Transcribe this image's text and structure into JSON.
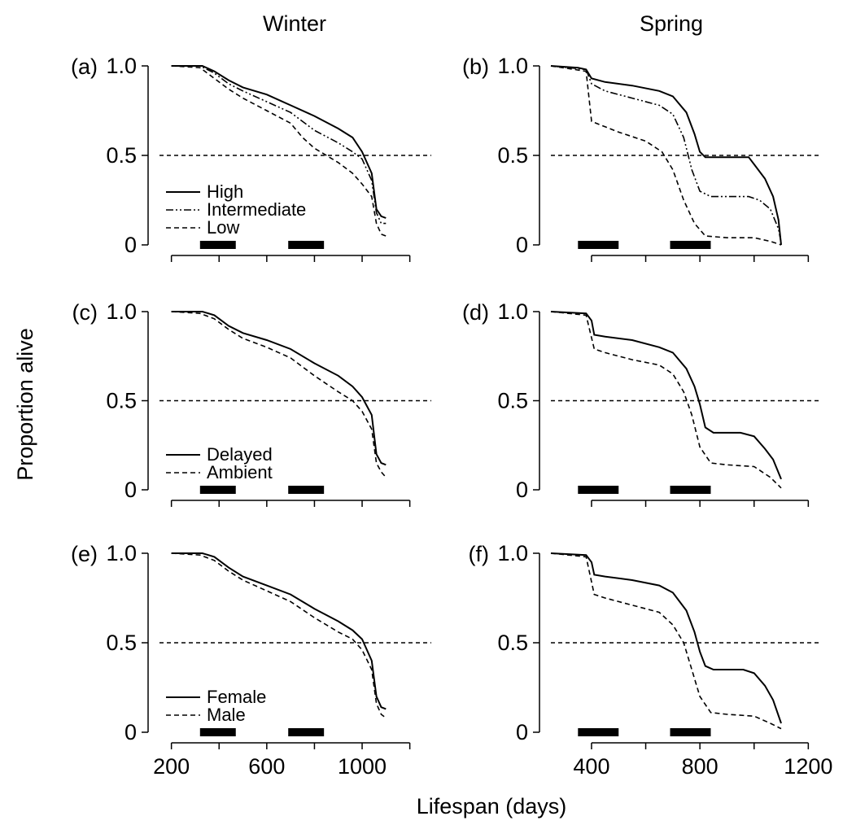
{
  "figure": {
    "columns": [
      "Winter",
      "Spring"
    ],
    "ylabel": "Proportion alive",
    "xlabel": "Lifespan (days)"
  },
  "chart_data": [
    {
      "panel": "(a)",
      "type": "line",
      "column": "Winter",
      "xlim": [
        150,
        1290
      ],
      "ylim": [
        0,
        1
      ],
      "xticks": [],
      "ytick_labels": [
        "0",
        "0.5",
        "1.0"
      ],
      "reference_line": 0.5,
      "bars": [
        [
          320,
          470
        ],
        [
          690,
          840
        ]
      ],
      "legend": {
        "position": "bottom-left"
      },
      "series": [
        {
          "name": "High",
          "style": "solid",
          "points": [
            [
              200,
              1.0
            ],
            [
              330,
              1.0
            ],
            [
              380,
              0.97
            ],
            [
              440,
              0.92
            ],
            [
              500,
              0.88
            ],
            [
              600,
              0.84
            ],
            [
              700,
              0.78
            ],
            [
              800,
              0.72
            ],
            [
              900,
              0.65
            ],
            [
              960,
              0.6
            ],
            [
              1000,
              0.52
            ],
            [
              1040,
              0.4
            ],
            [
              1060,
              0.2
            ],
            [
              1080,
              0.16
            ],
            [
              1100,
              0.15
            ]
          ]
        },
        {
          "name": "Intermediate",
          "style": "dashdotdot",
          "points": [
            [
              200,
              1.0
            ],
            [
              320,
              1.0
            ],
            [
              380,
              0.96
            ],
            [
              440,
              0.9
            ],
            [
              500,
              0.86
            ],
            [
              600,
              0.8
            ],
            [
              700,
              0.74
            ],
            [
              800,
              0.64
            ],
            [
              900,
              0.57
            ],
            [
              960,
              0.52
            ],
            [
              1000,
              0.48
            ],
            [
              1040,
              0.36
            ],
            [
              1060,
              0.18
            ],
            [
              1080,
              0.12
            ],
            [
              1100,
              0.12
            ]
          ]
        },
        {
          "name": "Low",
          "style": "dashed",
          "points": [
            [
              200,
              1.0
            ],
            [
              320,
              0.99
            ],
            [
              380,
              0.93
            ],
            [
              440,
              0.87
            ],
            [
              500,
              0.82
            ],
            [
              600,
              0.75
            ],
            [
              700,
              0.68
            ],
            [
              750,
              0.6
            ],
            [
              800,
              0.54
            ],
            [
              900,
              0.46
            ],
            [
              960,
              0.4
            ],
            [
              1000,
              0.34
            ],
            [
              1040,
              0.27
            ],
            [
              1060,
              0.12
            ],
            [
              1080,
              0.06
            ],
            [
              1100,
              0.05
            ]
          ]
        }
      ]
    },
    {
      "panel": "(b)",
      "type": "line",
      "column": "Spring",
      "xlim": [
        250,
        1250
      ],
      "ylim": [
        0,
        1
      ],
      "xticks": [],
      "ytick_labels": [
        "0",
        "0.5",
        "1.0"
      ],
      "reference_line": 0.5,
      "bars": [
        [
          350,
          500
        ],
        [
          690,
          840
        ]
      ],
      "series": [
        {
          "name": "High",
          "style": "solid",
          "points": [
            [
              250,
              1.0
            ],
            [
              350,
              0.99
            ],
            [
              380,
              0.98
            ],
            [
              400,
              0.93
            ],
            [
              450,
              0.91
            ],
            [
              550,
              0.89
            ],
            [
              650,
              0.86
            ],
            [
              700,
              0.83
            ],
            [
              750,
              0.74
            ],
            [
              780,
              0.62
            ],
            [
              800,
              0.52
            ],
            [
              820,
              0.49
            ],
            [
              900,
              0.49
            ],
            [
              980,
              0.49
            ],
            [
              1000,
              0.45
            ],
            [
              1040,
              0.37
            ],
            [
              1070,
              0.27
            ],
            [
              1090,
              0.14
            ],
            [
              1100,
              0.0
            ]
          ]
        },
        {
          "name": "Intermediate",
          "style": "dashdotdot",
          "points": [
            [
              250,
              1.0
            ],
            [
              380,
              0.98
            ],
            [
              400,
              0.9
            ],
            [
              450,
              0.86
            ],
            [
              550,
              0.82
            ],
            [
              650,
              0.78
            ],
            [
              700,
              0.73
            ],
            [
              740,
              0.6
            ],
            [
              770,
              0.42
            ],
            [
              800,
              0.3
            ],
            [
              840,
              0.27
            ],
            [
              980,
              0.27
            ],
            [
              1020,
              0.25
            ],
            [
              1060,
              0.2
            ],
            [
              1090,
              0.09
            ],
            [
              1100,
              0.01
            ]
          ]
        },
        {
          "name": "Low",
          "style": "dashed",
          "points": [
            [
              250,
              1.0
            ],
            [
              380,
              0.97
            ],
            [
              400,
              0.69
            ],
            [
              450,
              0.66
            ],
            [
              500,
              0.63
            ],
            [
              600,
              0.58
            ],
            [
              660,
              0.52
            ],
            [
              700,
              0.42
            ],
            [
              740,
              0.25
            ],
            [
              780,
              0.12
            ],
            [
              820,
              0.05
            ],
            [
              900,
              0.04
            ],
            [
              1000,
              0.04
            ],
            [
              1060,
              0.02
            ],
            [
              1100,
              0.0
            ]
          ]
        }
      ]
    },
    {
      "panel": "(c)",
      "type": "line",
      "column": "Winter",
      "xlim": [
        150,
        1290
      ],
      "ylim": [
        0,
        1
      ],
      "xticks": [],
      "ytick_labels": [
        "0",
        "0.5",
        "1.0"
      ],
      "reference_line": 0.5,
      "bars": [
        [
          320,
          470
        ],
        [
          690,
          840
        ]
      ],
      "legend": {
        "position": "bottom-left"
      },
      "series": [
        {
          "name": "Delayed",
          "style": "solid",
          "points": [
            [
              200,
              1.0
            ],
            [
              330,
              1.0
            ],
            [
              380,
              0.98
            ],
            [
              440,
              0.92
            ],
            [
              500,
              0.88
            ],
            [
              600,
              0.84
            ],
            [
              700,
              0.79
            ],
            [
              800,
              0.71
            ],
            [
              900,
              0.64
            ],
            [
              960,
              0.58
            ],
            [
              1000,
              0.52
            ],
            [
              1040,
              0.42
            ],
            [
              1060,
              0.2
            ],
            [
              1080,
              0.15
            ],
            [
              1100,
              0.14
            ]
          ]
        },
        {
          "name": "Ambient",
          "style": "dashed",
          "points": [
            [
              200,
              1.0
            ],
            [
              320,
              0.99
            ],
            [
              380,
              0.96
            ],
            [
              440,
              0.9
            ],
            [
              500,
              0.85
            ],
            [
              600,
              0.8
            ],
            [
              700,
              0.74
            ],
            [
              800,
              0.64
            ],
            [
              900,
              0.55
            ],
            [
              960,
              0.5
            ],
            [
              1000,
              0.44
            ],
            [
              1040,
              0.34
            ],
            [
              1060,
              0.15
            ],
            [
              1080,
              0.1
            ],
            [
              1100,
              0.07
            ]
          ]
        }
      ]
    },
    {
      "panel": "(d)",
      "type": "line",
      "column": "Spring",
      "xlim": [
        250,
        1250
      ],
      "ylim": [
        0,
        1
      ],
      "xticks": [],
      "ytick_labels": [
        "0",
        "0.5",
        "1.0"
      ],
      "reference_line": 0.5,
      "bars": [
        [
          350,
          500
        ],
        [
          690,
          840
        ]
      ],
      "series": [
        {
          "name": "Delayed",
          "style": "solid",
          "points": [
            [
              250,
              1.0
            ],
            [
              380,
              0.99
            ],
            [
              400,
              0.95
            ],
            [
              410,
              0.87
            ],
            [
              450,
              0.86
            ],
            [
              550,
              0.84
            ],
            [
              650,
              0.8
            ],
            [
              700,
              0.77
            ],
            [
              750,
              0.68
            ],
            [
              780,
              0.58
            ],
            [
              800,
              0.48
            ],
            [
              820,
              0.35
            ],
            [
              850,
              0.32
            ],
            [
              950,
              0.32
            ],
            [
              1000,
              0.3
            ],
            [
              1040,
              0.23
            ],
            [
              1070,
              0.17
            ],
            [
              1100,
              0.06
            ]
          ]
        },
        {
          "name": "Ambient",
          "style": "dashed",
          "points": [
            [
              250,
              1.0
            ],
            [
              380,
              0.98
            ],
            [
              410,
              0.79
            ],
            [
              450,
              0.77
            ],
            [
              550,
              0.73
            ],
            [
              650,
              0.7
            ],
            [
              700,
              0.65
            ],
            [
              740,
              0.55
            ],
            [
              770,
              0.42
            ],
            [
              800,
              0.24
            ],
            [
              840,
              0.15
            ],
            [
              900,
              0.14
            ],
            [
              1000,
              0.13
            ],
            [
              1060,
              0.07
            ],
            [
              1100,
              0.01
            ]
          ]
        }
      ]
    },
    {
      "panel": "(e)",
      "type": "line",
      "column": "Winter",
      "xlim": [
        150,
        1290
      ],
      "ylim": [
        0,
        1
      ],
      "xticks": [
        200,
        600,
        1000
      ],
      "ytick_labels": [
        "0",
        "0.5",
        "1.0"
      ],
      "reference_line": 0.5,
      "bars": [
        [
          320,
          470
        ],
        [
          690,
          840
        ]
      ],
      "legend": {
        "position": "bottom-left"
      },
      "series": [
        {
          "name": "Female",
          "style": "solid",
          "points": [
            [
              200,
              1.0
            ],
            [
              330,
              1.0
            ],
            [
              380,
              0.98
            ],
            [
              440,
              0.92
            ],
            [
              500,
              0.87
            ],
            [
              600,
              0.82
            ],
            [
              700,
              0.77
            ],
            [
              800,
              0.69
            ],
            [
              900,
              0.62
            ],
            [
              960,
              0.57
            ],
            [
              1000,
              0.52
            ],
            [
              1040,
              0.4
            ],
            [
              1060,
              0.2
            ],
            [
              1080,
              0.14
            ],
            [
              1100,
              0.13
            ]
          ]
        },
        {
          "name": "Male",
          "style": "dashed",
          "points": [
            [
              200,
              1.0
            ],
            [
              320,
              0.99
            ],
            [
              380,
              0.96
            ],
            [
              440,
              0.9
            ],
            [
              500,
              0.85
            ],
            [
              600,
              0.79
            ],
            [
              700,
              0.73
            ],
            [
              800,
              0.64
            ],
            [
              900,
              0.56
            ],
            [
              960,
              0.52
            ],
            [
              1000,
              0.46
            ],
            [
              1040,
              0.35
            ],
            [
              1060,
              0.16
            ],
            [
              1080,
              0.1
            ],
            [
              1100,
              0.08
            ]
          ]
        }
      ]
    },
    {
      "panel": "(f)",
      "type": "line",
      "column": "Spring",
      "xlim": [
        250,
        1250
      ],
      "ylim": [
        0,
        1
      ],
      "xticks": [
        400,
        800,
        1200
      ],
      "ytick_labels": [
        "0",
        "0.5",
        "1.0"
      ],
      "reference_line": 0.5,
      "bars": [
        [
          350,
          500
        ],
        [
          690,
          840
        ]
      ],
      "series": [
        {
          "name": "Female",
          "style": "solid",
          "points": [
            [
              250,
              1.0
            ],
            [
              380,
              0.99
            ],
            [
              400,
              0.95
            ],
            [
              410,
              0.88
            ],
            [
              450,
              0.87
            ],
            [
              550,
              0.85
            ],
            [
              650,
              0.82
            ],
            [
              700,
              0.78
            ],
            [
              750,
              0.68
            ],
            [
              780,
              0.56
            ],
            [
              800,
              0.45
            ],
            [
              820,
              0.37
            ],
            [
              850,
              0.35
            ],
            [
              960,
              0.35
            ],
            [
              1000,
              0.33
            ],
            [
              1040,
              0.26
            ],
            [
              1070,
              0.18
            ],
            [
              1100,
              0.05
            ]
          ]
        },
        {
          "name": "Male",
          "style": "dashed",
          "points": [
            [
              250,
              1.0
            ],
            [
              380,
              0.98
            ],
            [
              410,
              0.77
            ],
            [
              450,
              0.75
            ],
            [
              550,
              0.71
            ],
            [
              650,
              0.67
            ],
            [
              700,
              0.6
            ],
            [
              740,
              0.5
            ],
            [
              770,
              0.35
            ],
            [
              800,
              0.2
            ],
            [
              840,
              0.11
            ],
            [
              900,
              0.1
            ],
            [
              1000,
              0.09
            ],
            [
              1060,
              0.05
            ],
            [
              1100,
              0.02
            ]
          ]
        }
      ]
    }
  ]
}
